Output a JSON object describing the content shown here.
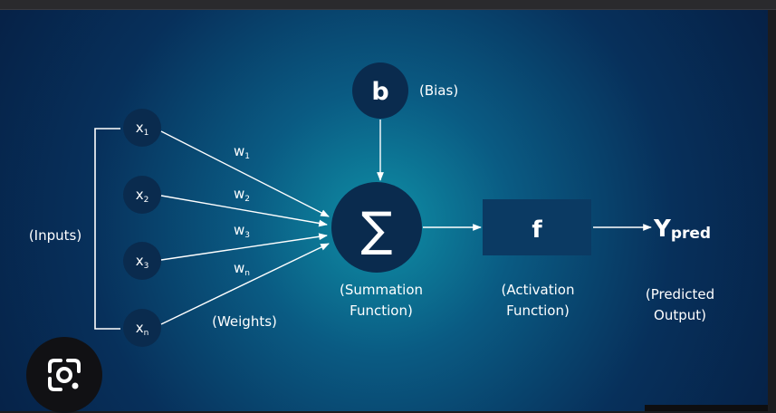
{
  "diagram": {
    "bias": {
      "symbol": "b",
      "label": "(Bias)"
    },
    "inputs": [
      {
        "base": "x",
        "sub": "1"
      },
      {
        "base": "x",
        "sub": "2"
      },
      {
        "base": "x",
        "sub": "3"
      },
      {
        "base": "x",
        "sub": "n"
      }
    ],
    "weights": [
      {
        "base": "w",
        "sub": "1"
      },
      {
        "base": "w",
        "sub": "2"
      },
      {
        "base": "w",
        "sub": "3"
      },
      {
        "base": "w",
        "sub": "n"
      }
    ],
    "inputs_label": "(Inputs)",
    "weights_label": "(Weights)",
    "summation": {
      "symbol": "∑",
      "label_line1": "(Summation",
      "label_line2": "Function)"
    },
    "activation": {
      "symbol": "f",
      "label_line1": "(Activation",
      "label_line2": "Function)"
    },
    "output": {
      "base": "Y",
      "sub": "pred",
      "label_line1": "(Predicted",
      "label_line2": "Output)"
    }
  },
  "overlay": {
    "lens_button_icon": "google-lens-icon"
  },
  "colors": {
    "background_center": "#0f8fa6",
    "background_edge": "#062146",
    "node_fill": "#0a2b4e",
    "activation_fill": "#0b3a63",
    "text": "#ffffff",
    "lines": "#ffffff"
  }
}
